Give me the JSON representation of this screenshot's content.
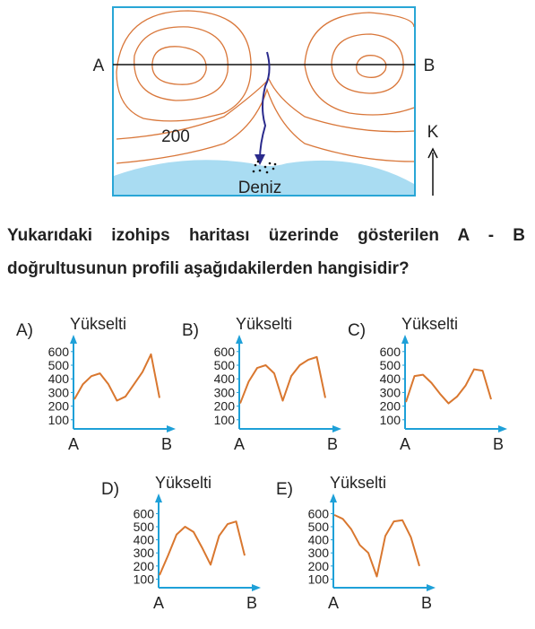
{
  "map": {
    "label_a": "A",
    "label_b": "B",
    "north": "K",
    "contour_label": "200",
    "sea": "Deniz"
  },
  "question": "Yukarıdaki izohips haritası üzerinde gösterilen A - B doğrultusunun profili aşağıdakilerden hangisidir?",
  "options": [
    {
      "label": "A)",
      "y_label": "Yükselti",
      "yticks": [
        100,
        200,
        300,
        400,
        500,
        600
      ],
      "x_start": "A",
      "x_end": "B",
      "values": [
        250,
        360,
        420,
        440,
        360,
        240,
        270,
        360,
        450,
        580,
        260
      ]
    },
    {
      "label": "B)",
      "y_label": "Yükselti",
      "yticks": [
        100,
        200,
        300,
        400,
        500,
        600
      ],
      "x_start": "A",
      "x_end": "B",
      "values": [
        220,
        380,
        480,
        500,
        440,
        240,
        420,
        500,
        540,
        560,
        260
      ]
    },
    {
      "label": "C)",
      "y_label": "Yükselti",
      "yticks": [
        100,
        200,
        300,
        400,
        500,
        600
      ],
      "x_start": "A",
      "x_end": "B",
      "values": [
        230,
        420,
        430,
        370,
        290,
        220,
        270,
        350,
        470,
        460,
        250
      ]
    },
    {
      "label": "D)",
      "y_label": "Yükselti",
      "yticks": [
        100,
        200,
        300,
        400,
        500,
        600
      ],
      "x_start": "A",
      "x_end": "B",
      "values": [
        130,
        280,
        440,
        500,
        460,
        340,
        210,
        430,
        520,
        540,
        280
      ]
    },
    {
      "label": "E)",
      "y_label": "Yükselti",
      "yticks": [
        100,
        200,
        300,
        400,
        500,
        600
      ],
      "x_start": "A",
      "x_end": "B",
      "values": [
        590,
        560,
        480,
        360,
        300,
        120,
        430,
        540,
        550,
        420,
        200
      ]
    }
  ]
}
